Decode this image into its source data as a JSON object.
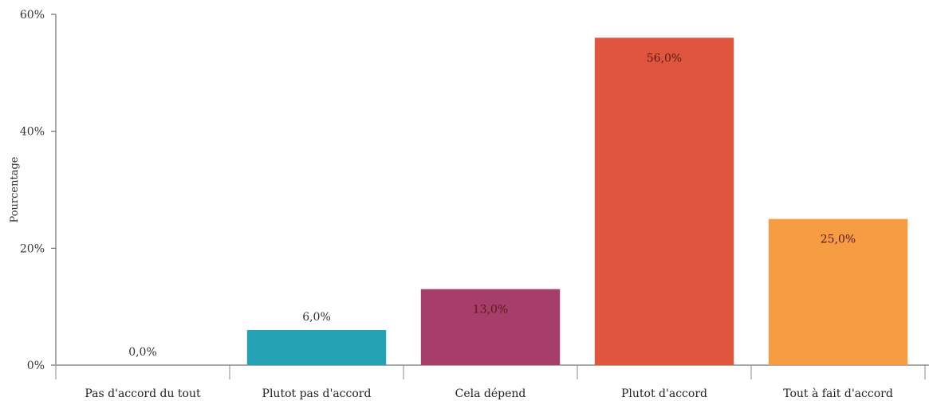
{
  "chart_data": {
    "type": "bar",
    "categories": [
      "Pas d'accord du tout",
      "Plutot pas d'accord",
      "Cela dépend",
      "Plutot d'accord",
      "Tout à fait d'accord"
    ],
    "values": [
      0.0,
      6.0,
      13.0,
      56.0,
      25.0
    ],
    "value_labels": [
      "0,0%",
      "6,0%",
      "13,0%",
      "56,0%",
      "25,0%"
    ],
    "colors": [
      "#25a2b3",
      "#25a2b3",
      "#a73d6b",
      "#e0553d",
      "#f69c42"
    ],
    "title": "",
    "xlabel": "",
    "ylabel": "Pourcentage",
    "ylim": [
      0,
      60
    ],
    "yticks": [
      0,
      20,
      40,
      60
    ],
    "ytick_labels": [
      "0%",
      "20%",
      "40%",
      "60%"
    ],
    "grid": false,
    "legend": "none"
  }
}
